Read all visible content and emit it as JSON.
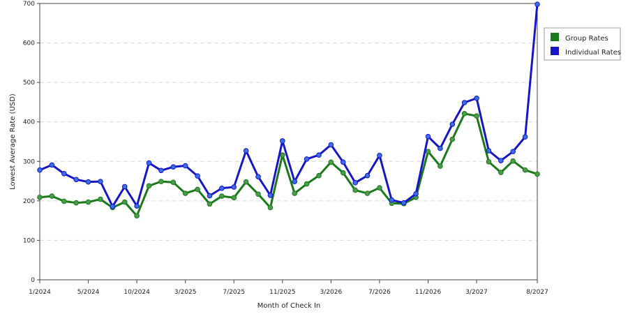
{
  "chart_data": {
    "type": "line",
    "xlabel": "Month of Check In",
    "ylabel": "Lowest Average Rate (USD)",
    "ylim": [
      0,
      700
    ],
    "yticks": [
      0,
      100,
      200,
      300,
      400,
      500,
      600,
      700
    ],
    "grid": true,
    "legend_position": "top-right",
    "x_start": "1/2024",
    "x_tick_labels": [
      {
        "label": "1/2024",
        "index": 0
      },
      {
        "label": "5/2024",
        "index": 4
      },
      {
        "label": "10/2024",
        "index": 8
      },
      {
        "label": "3/2025",
        "index": 12
      },
      {
        "label": "7/2025",
        "index": 16
      },
      {
        "label": "11/2025",
        "index": 20
      },
      {
        "label": "3/2026",
        "index": 24
      },
      {
        "label": "7/2026",
        "index": 28
      },
      {
        "label": "11/2026",
        "index": 32
      },
      {
        "label": "3/2027",
        "index": 36
      },
      {
        "label": "8/2027",
        "index": 41
      }
    ],
    "series": [
      {
        "name": "Group Rates",
        "color": "#1a7a1a",
        "marker_color": "#4c9a4c",
        "values": [
          209,
          212,
          199,
          195,
          197,
          204,
          183,
          197,
          162,
          238,
          249,
          247,
          219,
          229,
          192,
          212,
          208,
          248,
          217,
          183,
          316,
          219,
          243,
          264,
          298,
          271,
          227,
          219,
          233,
          194,
          193,
          209,
          325,
          288,
          356,
          421,
          415,
          299,
          272,
          301,
          278,
          268
        ]
      },
      {
        "name": "Individual Rates",
        "color": "#1616c8",
        "marker_color": "#3c6ee6",
        "values": [
          278,
          291,
          269,
          254,
          248,
          249,
          186,
          236,
          187,
          296,
          277,
          286,
          289,
          263,
          213,
          232,
          235,
          327,
          261,
          214,
          352,
          249,
          306,
          316,
          342,
          298,
          246,
          264,
          315,
          202,
          195,
          218,
          363,
          333,
          394,
          449,
          460,
          327,
          302,
          325,
          362,
          698
        ]
      }
    ]
  }
}
